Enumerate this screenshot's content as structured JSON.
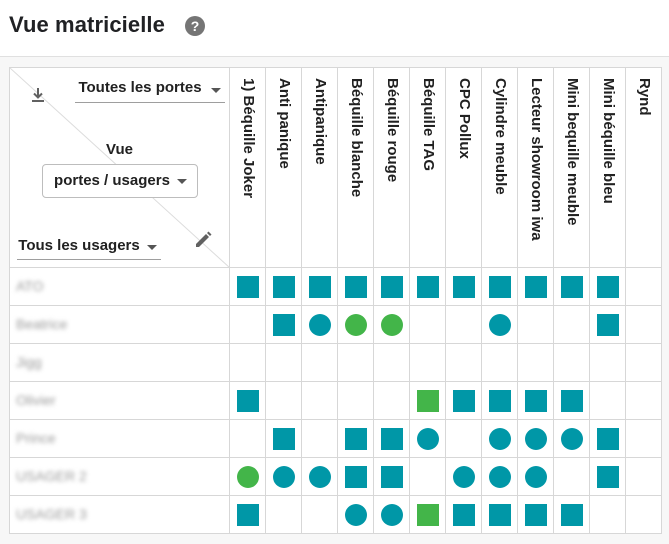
{
  "page": {
    "title": "Vue matricielle",
    "help_icon": "help-circle-icon",
    "help_glyph": "?"
  },
  "controls": {
    "download_icon": "download-icon",
    "doors_filter": "Toutes les portes",
    "view_label": "Vue",
    "view_select": "portes / usagers",
    "users_filter": "Tous les usagers",
    "edit_icon": "pencil-icon"
  },
  "colors": {
    "teal": "#0097a7",
    "green": "#43b549",
    "green_square": "#43b549"
  },
  "doors": [
    "1) Béquille Joker",
    "Anti panique",
    "Antipanique",
    "Béquille blanche",
    "Béquille rouge",
    "Béquille TAG",
    "CPC Pollux",
    "Cylindre meuble",
    "Lecteur showroom iwa",
    "Mini bequille meuble",
    "Mini béquille bleu",
    "Rynd"
  ],
  "users": [
    {
      "name": "ATO",
      "cells": [
        "tsq",
        "tsq",
        "tsq",
        "tsq",
        "tsq",
        "tsq",
        "tsq",
        "tsq",
        "tsq",
        "tsq",
        "tsq",
        ""
      ]
    },
    {
      "name": "Beatrice",
      "cells": [
        "",
        "tsq",
        "tci",
        "gci",
        "gci",
        "",
        "",
        "tci",
        "",
        "",
        "tsq",
        ""
      ]
    },
    {
      "name": "Jigg",
      "cells": [
        "",
        "",
        "",
        "",
        "",
        "",
        "",
        "",
        "",
        "",
        "",
        ""
      ]
    },
    {
      "name": "Olivier",
      "cells": [
        "tsq",
        "",
        "",
        "",
        "",
        "gsq",
        "tsq",
        "tsq",
        "tsq",
        "tsq",
        "",
        ""
      ]
    },
    {
      "name": "Prince",
      "cells": [
        "",
        "tsq",
        "",
        "tsq",
        "tsq",
        "tci",
        "",
        "tci",
        "tci",
        "tci",
        "tsq",
        ""
      ]
    },
    {
      "name": "USAGER 2",
      "cells": [
        "gci",
        "tci",
        "tci",
        "tsq",
        "tsq",
        "",
        "tci",
        "tci",
        "tci",
        "",
        "tsq",
        ""
      ]
    },
    {
      "name": "USAGER 3",
      "cells": [
        "tsq",
        "",
        "",
        "tci",
        "tci",
        "gsq",
        "tsq",
        "tsq",
        "tsq",
        "tsq",
        "",
        ""
      ]
    }
  ],
  "legend_codes": {
    "tsq": "teal-square-icon",
    "tci": "teal-circle-icon",
    "gci": "green-circle-icon",
    "gsq": "green-square-icon"
  }
}
